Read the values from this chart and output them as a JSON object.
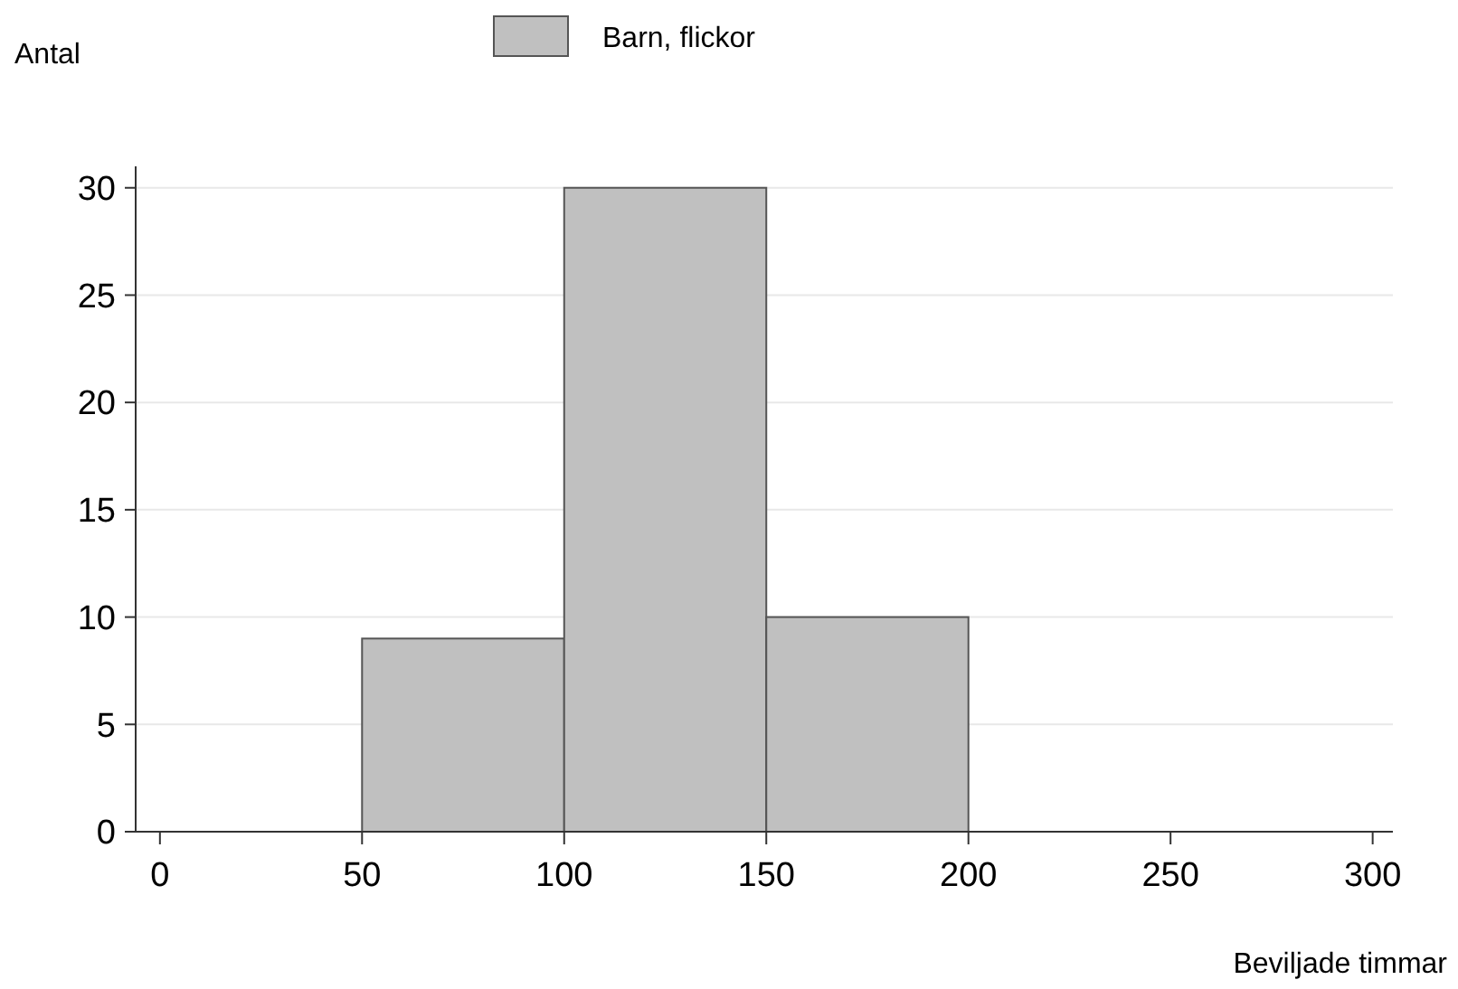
{
  "chart_data": {
    "type": "histogram",
    "xlabel": "Beviljade timmar",
    "ylabel": "Antal",
    "bins": [
      50,
      100,
      150,
      200
    ],
    "series": [
      {
        "name": "Barn, flickor",
        "color": "#c0c0c0",
        "values": [
          9,
          30,
          10
        ]
      }
    ],
    "xlim": [
      -6,
      305
    ],
    "xticks": [
      0,
      50,
      100,
      150,
      200,
      250,
      300
    ],
    "ylim": [
      0,
      31
    ],
    "yticks": [
      0,
      5,
      10,
      15,
      20,
      25,
      30
    ],
    "grid": "y",
    "legend": "top"
  }
}
